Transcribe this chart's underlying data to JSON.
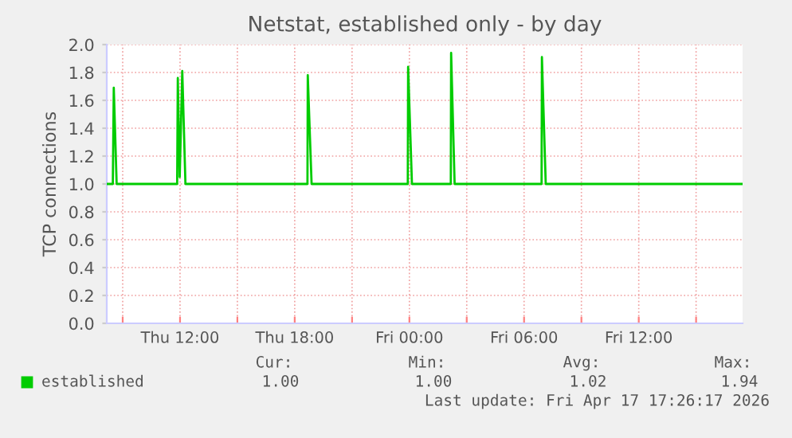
{
  "chart_data": {
    "type": "line",
    "title": "Netstat, established only - by day",
    "ylabel": "TCP connections",
    "x": [
      "2026-04-16T08:10",
      "2026-04-16T08:29",
      "2026-04-16T08:32",
      "2026-04-16T08:41",
      "2026-04-16T11:51",
      "2026-04-16T11:53",
      "2026-04-16T11:59",
      "2026-04-16T12:07",
      "2026-04-16T12:17",
      "2026-04-16T18:40",
      "2026-04-16T18:41",
      "2026-04-16T18:53",
      "2026-04-16T23:55",
      "2026-04-16T23:56",
      "2026-04-17T00:08",
      "2026-04-17T02:10",
      "2026-04-17T02:11",
      "2026-04-17T02:22",
      "2026-04-17T06:55",
      "2026-04-17T06:56",
      "2026-04-17T07:08",
      "2026-04-17T17:23"
    ],
    "series": [
      {
        "name": "established",
        "color": "#00cc00",
        "values": [
          1.0,
          1.0,
          1.69,
          1.0,
          1.0,
          1.76,
          1.05,
          1.81,
          1.0,
          1.0,
          1.78,
          1.0,
          1.0,
          1.84,
          1.0,
          1.0,
          1.94,
          1.0,
          1.0,
          1.91,
          1.0,
          1.0
        ]
      }
    ],
    "xlim": [
      "2026-04-16T08:10",
      "2026-04-17T17:26"
    ],
    "xticks": [
      {
        "value": "2026-04-16T09:00",
        "label": null
      },
      {
        "value": "2026-04-16T12:00",
        "label": "Thu 12:00"
      },
      {
        "value": "2026-04-16T15:00",
        "label": null
      },
      {
        "value": "2026-04-16T18:00",
        "label": "Thu 18:00"
      },
      {
        "value": "2026-04-16T21:00",
        "label": null
      },
      {
        "value": "2026-04-17T00:00",
        "label": "Fri 00:00"
      },
      {
        "value": "2026-04-17T03:00",
        "label": null
      },
      {
        "value": "2026-04-17T06:00",
        "label": "Fri 06:00"
      },
      {
        "value": "2026-04-17T09:00",
        "label": null
      },
      {
        "value": "2026-04-17T12:00",
        "label": "Fri 12:00"
      },
      {
        "value": "2026-04-17T15:00",
        "label": null
      }
    ],
    "ylim": [
      0,
      2.0
    ],
    "yticks": [
      {
        "value": 0,
        "label": "0.0"
      },
      {
        "value": 0.2,
        "label": "0.2"
      },
      {
        "value": 0.4,
        "label": "0.4"
      },
      {
        "value": 0.6,
        "label": "0.6"
      },
      {
        "value": 0.8,
        "label": "0.8"
      },
      {
        "value": 1.0,
        "label": "1.0"
      },
      {
        "value": 1.2,
        "label": "1.2"
      },
      {
        "value": 1.4,
        "label": "1.4"
      },
      {
        "value": 1.6,
        "label": "1.6"
      },
      {
        "value": 1.8,
        "label": "1.8"
      },
      {
        "value": 2.0,
        "label": "2.0"
      }
    ],
    "grid": true,
    "legend": "bottom",
    "marker": "none",
    "line_style": "solid",
    "annotations": [
      "Cur:",
      "Min:",
      "Avg:",
      "Max:",
      "1.00",
      "1.00",
      "1.02",
      "1.94",
      "Last update: Fri Apr 17 17:26:17 2026"
    ]
  }
}
